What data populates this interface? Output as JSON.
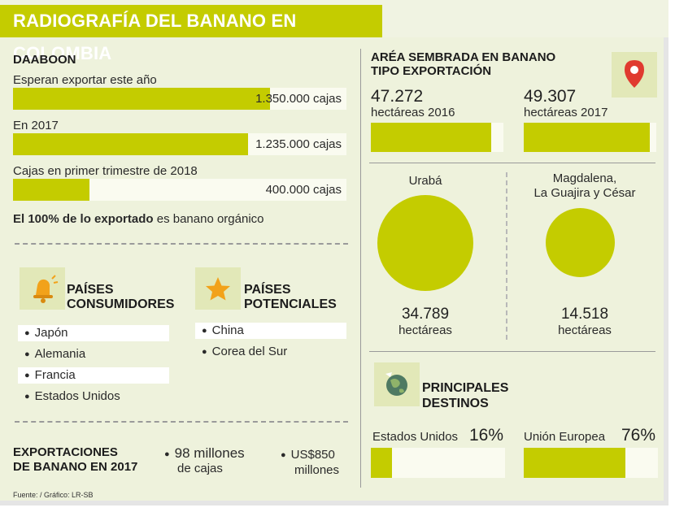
{
  "title": "RADIOGRAFÍA DEL BANANO EN COLOMBIA",
  "colors": {
    "accent": "#c4cc00",
    "background": "#eef2dc"
  },
  "daaboon": {
    "heading": "DAABOON",
    "rows": [
      {
        "label": "Esperan exportar este año",
        "value_text": "1.350.000 cajas",
        "value": 1350000
      },
      {
        "label": "En 2017",
        "value_text": "1.235.000 cajas",
        "value": 1235000
      },
      {
        "label": "Cajas en primer trimestre de 2018",
        "value_text": "400.000 cajas",
        "value": 400000
      }
    ],
    "note_bold": "El 100% de lo exportado",
    "note_rest": " es banano orgánico"
  },
  "consumers": {
    "icon": "bell-icon",
    "title_line1": "PAÍSES",
    "title_line2": "CONSUMIDORES",
    "items": [
      "Japón",
      "Alemania",
      "Francia",
      "Estados Unidos"
    ]
  },
  "potential": {
    "icon": "star-icon",
    "title_line1": "PAÍSES",
    "title_line2": "POTENCIALES",
    "items": [
      "China",
      "Corea del Sur"
    ]
  },
  "exports": {
    "title_line1": "EXPORTACIONES",
    "title_line2": "DE BANANO EN 2017",
    "stat1_line1": "98 millones",
    "stat1_line2": "de cajas",
    "stat2_line1": "US$850",
    "stat2_line2": "millones"
  },
  "source": "Fuente: / Gráfico: LR-SB",
  "area": {
    "title_line1": "ARÉA SEMBRADA EN BANANO",
    "title_line2": "TIPO EXPORTACIÓN",
    "icon": "map-pin-icon",
    "years": [
      {
        "value_text": "47.272",
        "label": "hectáreas 2016",
        "value": 47272
      },
      {
        "value_text": "49.307",
        "label": "hectáreas 2017",
        "value": 49307
      }
    ]
  },
  "regions": [
    {
      "name_line1": "Urabá",
      "name_line2": "",
      "value_text": "34.789",
      "unit": "hectáreas",
      "value": 34789
    },
    {
      "name_line1": "Magdalena,",
      "name_line2": "La Guajira y César",
      "value_text": "14.518",
      "unit": "hectáreas",
      "value": 14518
    }
  ],
  "destinations": {
    "icon": "globe-icon",
    "title_line1": "PRINCIPALES",
    "title_line2": "DESTINOS",
    "items": [
      {
        "label": "Estados Unidos",
        "pct_text": "16%",
        "value": 16
      },
      {
        "label": "Unión Europea",
        "pct_text": "76%",
        "value": 76
      }
    ]
  },
  "chart_data": [
    {
      "type": "bar",
      "title": "DAABOON",
      "categories": [
        "Esperan exportar este año",
        "En 2017",
        "Cajas en primer trimestre de 2018"
      ],
      "values": [
        1350000,
        1235000,
        400000
      ]
    },
    {
      "type": "bar",
      "title": "ARÉA SEMBRADA EN BANANO TIPO EXPORTACIÓN",
      "categories": [
        "hectáreas 2016",
        "hectáreas 2017"
      ],
      "values": [
        47272,
        49307
      ]
    },
    {
      "type": "bubble",
      "categories": [
        "Urabá",
        "Magdalena, La Guajira y César"
      ],
      "values": [
        34789,
        14518
      ]
    },
    {
      "type": "bar",
      "title": "PRINCIPALES DESTINOS",
      "categories": [
        "Estados Unidos",
        "Unión Europea"
      ],
      "values": [
        16,
        76
      ]
    }
  ]
}
